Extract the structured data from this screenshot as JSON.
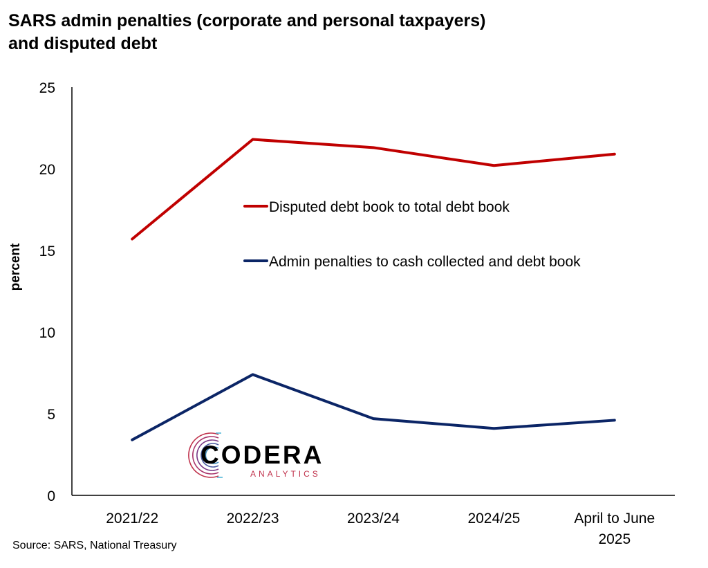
{
  "title_line1": "SARS admin penalties (corporate and personal taxpayers)",
  "title_line2": "and disputed debt",
  "source": "Source: SARS, National Treasury",
  "logo": {
    "name": "CODERA",
    "subtitle": "ANALYTICS"
  },
  "colors": {
    "disputed": "#c00000",
    "penalties": "#0b2566"
  },
  "chart_data": {
    "type": "line",
    "title": "SARS admin penalties (corporate and personal taxpayers) and disputed debt",
    "xlabel": "",
    "ylabel": "percent",
    "ylim": [
      0,
      25
    ],
    "yticks": [
      0,
      5,
      10,
      15,
      20,
      25
    ],
    "categories": [
      "2021/22",
      "2022/23",
      "2023/24",
      "2024/25",
      "April to June 2025"
    ],
    "category_lines": [
      [
        "2021/22"
      ],
      [
        "2022/23"
      ],
      [
        "2023/24"
      ],
      [
        "2024/25"
      ],
      [
        "April to June",
        "2025"
      ]
    ],
    "grid": false,
    "legend_position": "center-right",
    "series": [
      {
        "name": "Disputed debt book to total debt book",
        "color": "#c00000",
        "values": [
          15.7,
          21.8,
          21.3,
          20.2,
          20.9
        ]
      },
      {
        "name": "Admin penalties to cash collected and debt book",
        "color": "#0b2566",
        "values": [
          3.4,
          7.4,
          4.7,
          4.1,
          4.6
        ]
      }
    ]
  }
}
